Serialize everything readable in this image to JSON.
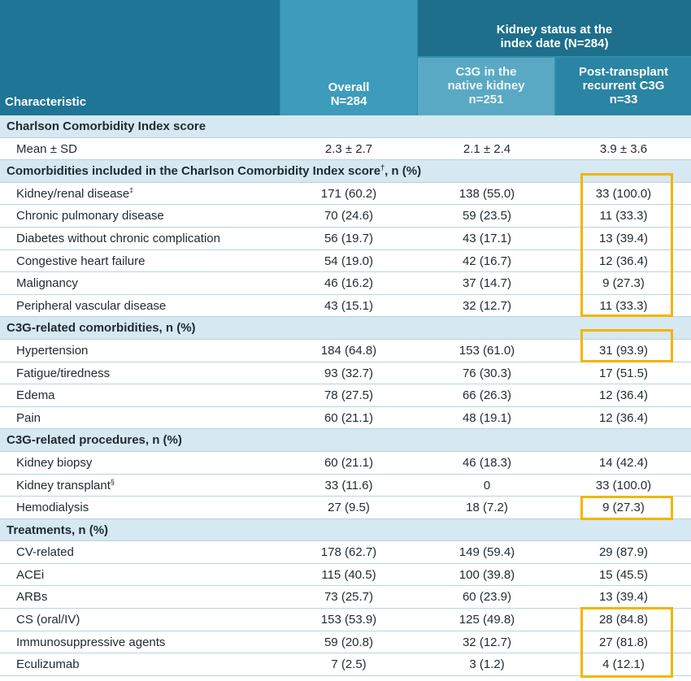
{
  "header": {
    "characteristic": "Characteristic",
    "overall_line1": "Overall",
    "overall_line2": "N=284",
    "kidney_status_line1": "Kidney status at the",
    "kidney_status_line2": "index date (N=284)",
    "native_line1": "C3G in the",
    "native_line2": "native kidney",
    "native_line3": "n=251",
    "post_line1": "Post-transplant",
    "post_line2": "recurrent C3G",
    "post_line3": "n=33"
  },
  "rows": [
    {
      "type": "section",
      "label": "Charlson Comorbidity Index score"
    },
    {
      "type": "data",
      "label": "Mean ± SD",
      "overall": "2.3 ± 2.7",
      "native": "2.1 ± 2.4",
      "post": "3.9 ± 3.6"
    },
    {
      "type": "section",
      "label": "Comorbidities included in the Charlson Comorbidity Index score",
      "sup": "†",
      "suffix": ", n (%)"
    },
    {
      "type": "data",
      "label": "Kidney/renal disease",
      "sup": "‡",
      "overall": "171 (60.2)",
      "native": "138 (55.0)",
      "post": "33 (100.0)"
    },
    {
      "type": "data",
      "label": "Chronic pulmonary disease",
      "overall": "70 (24.6)",
      "native": "59 (23.5)",
      "post": "11 (33.3)"
    },
    {
      "type": "data",
      "label": "Diabetes without chronic complication",
      "overall": "56 (19.7)",
      "native": "43 (17.1)",
      "post": "13 (39.4)"
    },
    {
      "type": "data",
      "label": "Congestive heart failure",
      "overall": "54 (19.0)",
      "native": "42 (16.7)",
      "post": "12 (36.4)"
    },
    {
      "type": "data",
      "label": "Malignancy",
      "overall": "46 (16.2)",
      "native": "37 (14.7)",
      "post": "9 (27.3)"
    },
    {
      "type": "data",
      "label": "Peripheral vascular disease",
      "overall": "43 (15.1)",
      "native": "32 (12.7)",
      "post": "11 (33.3)"
    },
    {
      "type": "section",
      "label": "C3G-related comorbidities, n (%)"
    },
    {
      "type": "data",
      "label": "Hypertension",
      "overall": "184 (64.8)",
      "native": "153 (61.0)",
      "post": "31 (93.9)"
    },
    {
      "type": "data",
      "label": "Fatigue/tiredness",
      "overall": "93 (32.7)",
      "native": "76 (30.3)",
      "post": "17 (51.5)"
    },
    {
      "type": "data",
      "label": "Edema",
      "overall": "78 (27.5)",
      "native": "66 (26.3)",
      "post": "12 (36.4)"
    },
    {
      "type": "data",
      "label": "Pain",
      "overall": "60 (21.1)",
      "native": "48 (19.1)",
      "post": "12 (36.4)"
    },
    {
      "type": "section",
      "label": "C3G-related procedures, n (%)"
    },
    {
      "type": "data",
      "label": "Kidney biopsy",
      "overall": "60 (21.1)",
      "native": "46 (18.3)",
      "post": "14 (42.4)"
    },
    {
      "type": "data",
      "label": "Kidney transplant",
      "sup": "§",
      "overall": "33 (11.6)",
      "native": "0",
      "post": "33 (100.0)"
    },
    {
      "type": "data",
      "label": "Hemodialysis",
      "overall": "27 (9.5)",
      "native": "18 (7.2)",
      "post": "9 (27.3)"
    },
    {
      "type": "section",
      "label": "Treatments, n (%)"
    },
    {
      "type": "data",
      "label": "CV-related",
      "overall": "178 (62.7)",
      "native": "149 (59.4)",
      "post": "29 (87.9)"
    },
    {
      "type": "data",
      "label": "ACEi",
      "overall": "115 (40.5)",
      "native": "100 (39.8)",
      "post": "15 (45.5)"
    },
    {
      "type": "data",
      "label": "ARBs",
      "overall": "73 (25.7)",
      "native": "60 (23.9)",
      "post": "13 (39.4)"
    },
    {
      "type": "data",
      "label": "CS (oral/IV)",
      "overall": "153 (53.9)",
      "native": "125 (49.8)",
      "post": "28 (84.8)"
    },
    {
      "type": "data",
      "label": "Immunosuppressive agents",
      "overall": "59 (20.8)",
      "native": "32 (12.7)",
      "post": "27 (81.8)"
    },
    {
      "type": "data",
      "label": "Eculizumab",
      "overall": "7 (2.5)",
      "native": "3 (1.2)",
      "post": "4 (12.1)"
    }
  ],
  "colors": {
    "header": "#2f8fae",
    "section": "#d6e8f1",
    "highlight": "#f2b500"
  }
}
